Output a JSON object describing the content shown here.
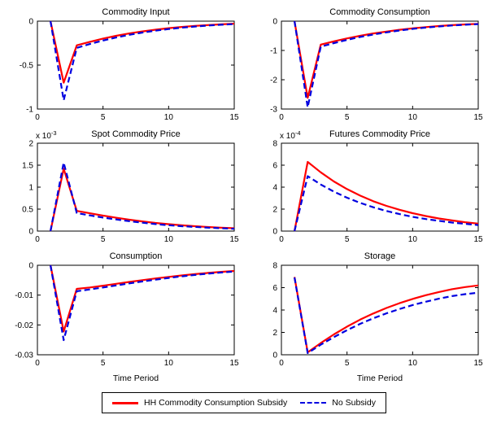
{
  "figure": {
    "background": "#ffffff"
  },
  "legend": {
    "items": [
      {
        "label": "HH Commodity Consumption Subsidy",
        "color": "#ff0000",
        "style": "solid"
      },
      {
        "label": "No Subsidy",
        "color": "#0000e0",
        "style": "dashed"
      }
    ]
  },
  "chart_data": [
    {
      "type": "line",
      "title": "Commodity Input",
      "xlabel": "",
      "x": [
        1,
        2,
        3,
        4,
        5,
        6,
        7,
        8,
        9,
        10,
        11,
        12,
        13,
        14,
        15
      ],
      "xlim": [
        0,
        15
      ],
      "xticks": [
        0,
        5,
        10,
        15
      ],
      "ylim": [
        -1,
        0
      ],
      "yticks": [
        -1,
        -0.5,
        0
      ],
      "y_exponent": null,
      "series": [
        {
          "name": "HH Commodity Consumption Subsidy",
          "values": [
            0,
            -0.7,
            -0.275,
            -0.235,
            -0.198,
            -0.167,
            -0.14,
            -0.117,
            -0.097,
            -0.08,
            -0.066,
            -0.054,
            -0.044,
            -0.036,
            -0.029
          ]
        },
        {
          "name": "No Subsidy",
          "values": [
            0,
            -0.9,
            -0.305,
            -0.26,
            -0.22,
            -0.186,
            -0.156,
            -0.13,
            -0.108,
            -0.09,
            -0.074,
            -0.061,
            -0.05,
            -0.041,
            -0.033
          ]
        }
      ]
    },
    {
      "type": "line",
      "title": "Commodity Consumption",
      "xlabel": "",
      "x": [
        1,
        2,
        3,
        4,
        5,
        6,
        7,
        8,
        9,
        10,
        11,
        12,
        13,
        14,
        15
      ],
      "xlim": [
        0,
        15
      ],
      "xticks": [
        0,
        5,
        10,
        15
      ],
      "ylim": [
        -3,
        0
      ],
      "yticks": [
        -3,
        -2,
        -1,
        0
      ],
      "y_exponent": null,
      "series": [
        {
          "name": "HH Commodity Consumption Subsidy",
          "values": [
            0,
            -2.62,
            -0.8,
            -0.69,
            -0.59,
            -0.5,
            -0.42,
            -0.355,
            -0.295,
            -0.245,
            -0.203,
            -0.167,
            -0.137,
            -0.112,
            -0.091
          ]
        },
        {
          "name": "No Subsidy",
          "values": [
            0,
            -2.94,
            -0.87,
            -0.75,
            -0.64,
            -0.54,
            -0.456,
            -0.383,
            -0.319,
            -0.265,
            -0.219,
            -0.181,
            -0.148,
            -0.121,
            -0.099
          ]
        }
      ]
    },
    {
      "type": "line",
      "title": "Spot Commodity Price",
      "xlabel": "",
      "x": [
        1,
        2,
        3,
        4,
        5,
        6,
        7,
        8,
        9,
        10,
        11,
        12,
        13,
        14,
        15
      ],
      "xlim": [
        0,
        15
      ],
      "xticks": [
        0,
        5,
        10,
        15
      ],
      "ylim": [
        0,
        2
      ],
      "yticks": [
        0,
        0.5,
        1,
        1.5,
        2
      ],
      "y_exponent": -3,
      "series": [
        {
          "name": "HH Commodity Consumption Subsidy",
          "values": [
            0,
            1.42,
            0.46,
            0.405,
            0.352,
            0.303,
            0.259,
            0.22,
            0.186,
            0.157,
            0.132,
            0.111,
            0.093,
            0.078,
            0.065
          ]
        },
        {
          "name": "No Subsidy",
          "values": [
            0,
            1.56,
            0.41,
            0.357,
            0.308,
            0.264,
            0.225,
            0.19,
            0.16,
            0.134,
            0.112,
            0.094,
            0.078,
            0.065,
            0.054
          ]
        }
      ]
    },
    {
      "type": "line",
      "title": "Futures Commodity Price",
      "xlabel": "",
      "x": [
        1,
        2,
        3,
        4,
        5,
        6,
        7,
        8,
        9,
        10,
        11,
        12,
        13,
        14,
        15
      ],
      "xlim": [
        0,
        15
      ],
      "xticks": [
        0,
        5,
        10,
        15
      ],
      "ylim": [
        0,
        8
      ],
      "yticks": [
        0,
        2,
        4,
        6,
        8
      ],
      "y_exponent": -4,
      "series": [
        {
          "name": "HH Commodity Consumption Subsidy",
          "values": [
            0,
            6.3,
            5.35,
            4.52,
            3.82,
            3.23,
            2.72,
            2.3,
            1.94,
            1.63,
            1.37,
            1.15,
            0.97,
            0.81,
            0.68
          ]
        },
        {
          "name": "No Subsidy",
          "values": [
            0,
            5.0,
            4.24,
            3.59,
            3.04,
            2.57,
            2.17,
            1.83,
            1.55,
            1.3,
            1.1,
            0.93,
            0.78,
            0.66,
            0.55
          ]
        }
      ]
    },
    {
      "type": "line",
      "title": "Consumption",
      "xlabel": "Time Period",
      "x": [
        1,
        2,
        3,
        4,
        5,
        6,
        7,
        8,
        9,
        10,
        11,
        12,
        13,
        14,
        15
      ],
      "xlim": [
        0,
        15
      ],
      "xticks": [
        0,
        5,
        10,
        15
      ],
      "ylim": [
        -0.03,
        0
      ],
      "yticks": [
        -0.03,
        -0.02,
        -0.01,
        0
      ],
      "y_exponent": null,
      "series": [
        {
          "name": "HH Commodity Consumption Subsidy",
          "values": [
            0,
            -0.0222,
            -0.0079,
            -0.00745,
            -0.00685,
            -0.00622,
            -0.0056,
            -0.005,
            -0.00442,
            -0.00389,
            -0.0034,
            -0.00296,
            -0.00256,
            -0.00221,
            -0.0019
          ]
        },
        {
          "name": "No Subsidy",
          "values": [
            0,
            -0.0251,
            -0.0087,
            -0.0081,
            -0.00745,
            -0.00676,
            -0.00609,
            -0.00544,
            -0.00482,
            -0.00425,
            -0.00372,
            -0.00324,
            -0.00281,
            -0.00243,
            -0.00209
          ]
        }
      ]
    },
    {
      "type": "line",
      "title": "Storage",
      "xlabel": "Time Period",
      "x": [
        1,
        2,
        3,
        4,
        5,
        6,
        7,
        8,
        9,
        10,
        11,
        12,
        13,
        14,
        15
      ],
      "xlim": [
        0,
        15
      ],
      "xticks": [
        0,
        5,
        10,
        15
      ],
      "ylim": [
        0,
        8
      ],
      "yticks": [
        0,
        2,
        4,
        6,
        8
      ],
      "y_exponent": null,
      "series": [
        {
          "name": "HH Commodity Consumption Subsidy",
          "values": [
            6.95,
            0.22,
            1.05,
            1.82,
            2.52,
            3.14,
            3.69,
            4.18,
            4.61,
            4.99,
            5.32,
            5.61,
            5.86,
            6.05,
            6.2
          ]
        },
        {
          "name": "No Subsidy",
          "values": [
            6.9,
            0.15,
            0.9,
            1.58,
            2.2,
            2.76,
            3.26,
            3.7,
            4.09,
            4.44,
            4.74,
            5.01,
            5.24,
            5.42,
            5.55
          ]
        }
      ]
    }
  ]
}
